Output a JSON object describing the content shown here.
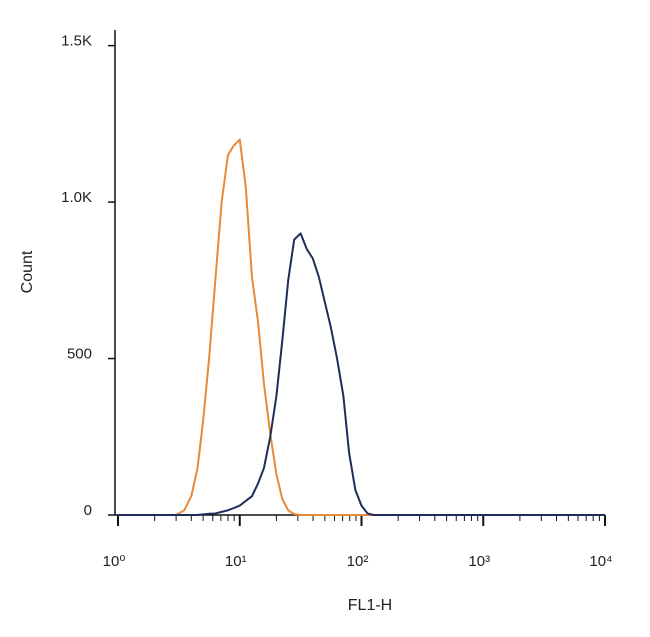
{
  "chart_data": {
    "type": "line",
    "x_label": "FL1-H",
    "y_label": "Count",
    "x_scale": "log",
    "x": [
      1,
      2,
      3,
      3.5,
      4,
      4.5,
      5,
      5.6,
      6.3,
      7.1,
      8,
      8.9,
      10,
      11.2,
      12.6,
      14.1,
      15.8,
      17.8,
      20,
      22.4,
      25,
      28,
      31.6,
      35.5,
      39.8,
      44.7,
      50,
      56,
      63,
      71,
      79,
      89,
      100,
      112,
      126,
      141,
      200,
      1000,
      10000
    ],
    "series": [
      {
        "color": "#e8893a",
        "values": [
          0,
          0,
          0,
          15,
          60,
          150,
          300,
          500,
          750,
          1000,
          1150,
          1180,
          1200,
          1050,
          760,
          620,
          420,
          260,
          130,
          50,
          15,
          3,
          0,
          0,
          0,
          0,
          0,
          0,
          0,
          0,
          0,
          0,
          0,
          0,
          0,
          0,
          0,
          0,
          0
        ]
      },
      {
        "color": "#1f2d5a",
        "values": [
          0,
          0,
          0,
          0,
          0,
          0,
          2,
          4,
          5,
          10,
          15,
          22,
          30,
          45,
          60,
          100,
          150,
          250,
          380,
          560,
          750,
          880,
          900,
          850,
          820,
          760,
          680,
          600,
          500,
          380,
          200,
          80,
          30,
          5,
          0,
          0,
          0,
          0,
          0
        ]
      }
    ],
    "xlim": [
      1,
      10000
    ],
    "xticks": [
      {
        "value": 1,
        "label": "10⁰"
      },
      {
        "value": 10,
        "label": "10¹"
      },
      {
        "value": 100,
        "label": "10²"
      },
      {
        "value": 1000,
        "label": "10³"
      },
      {
        "value": 10000,
        "label": "10⁴"
      }
    ],
    "xminorticks": [
      2,
      3,
      4,
      5,
      6,
      7,
      8,
      9,
      20,
      30,
      40,
      50,
      60,
      70,
      80,
      90,
      200,
      300,
      400,
      500,
      600,
      700,
      800,
      900,
      2000,
      3000,
      4000,
      5000,
      6000,
      7000,
      8000,
      9000
    ],
    "ylim": [
      0,
      1550
    ],
    "yticks": [
      0,
      500,
      {
        "value": 1000,
        "label": "1.0K"
      },
      {
        "value": 1500,
        "label": "1.5K"
      }
    ],
    "grid": false
  }
}
